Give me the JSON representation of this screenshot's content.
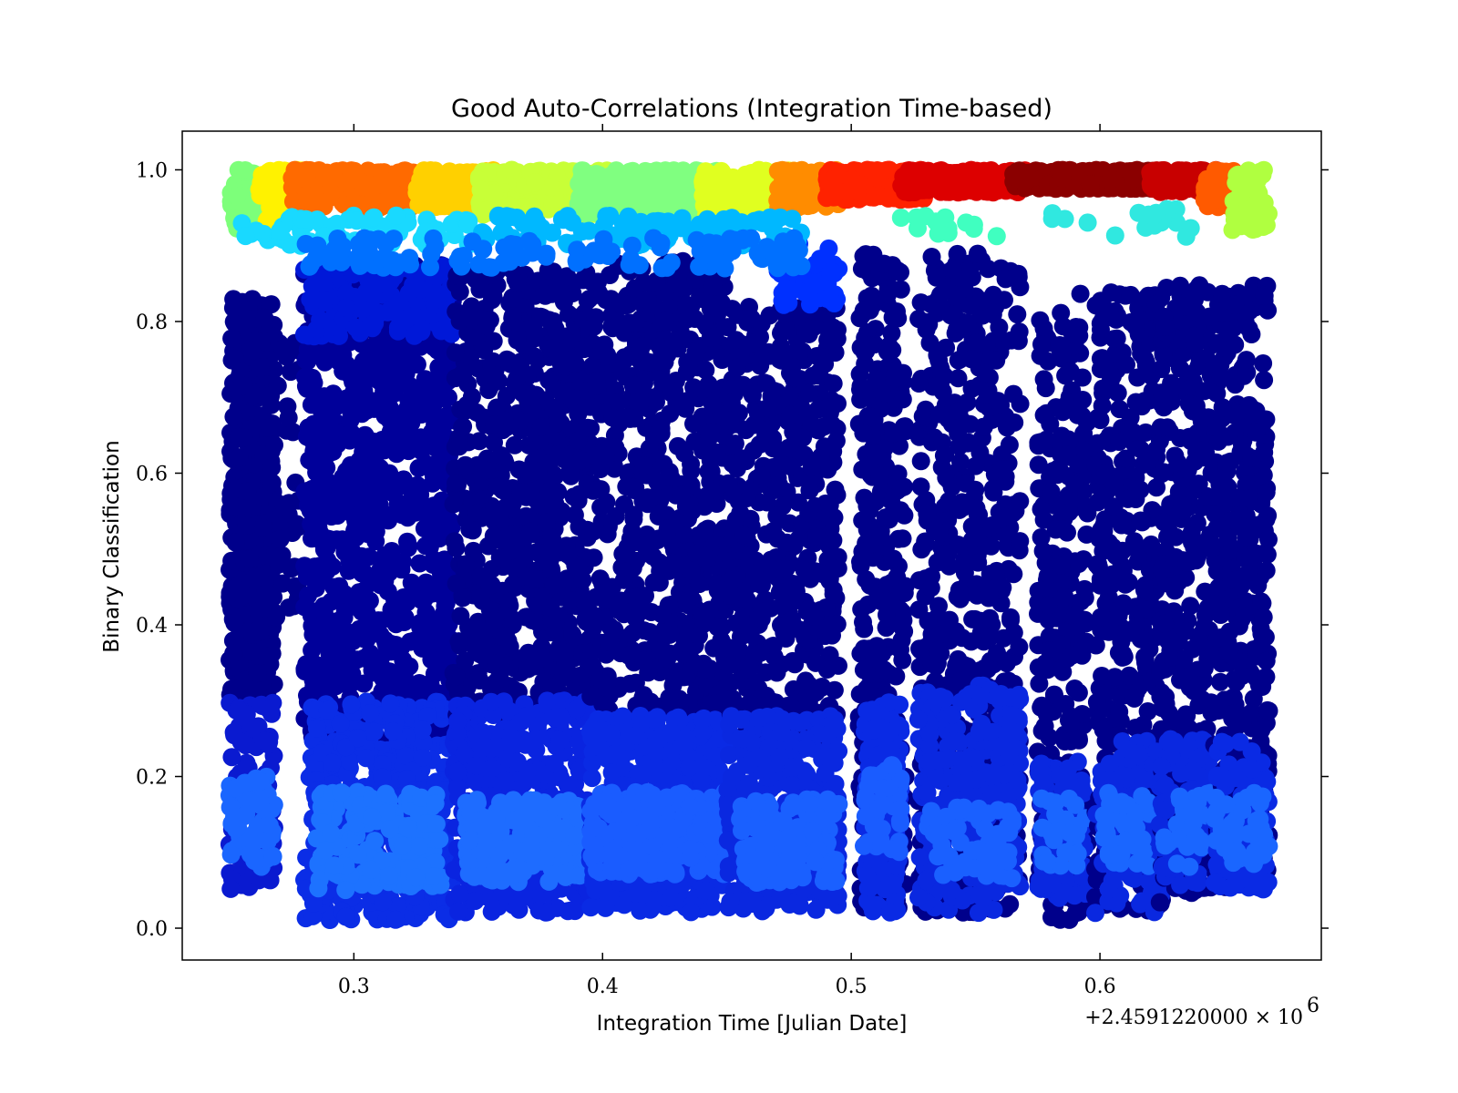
{
  "chart_data": {
    "type": "scatter",
    "title": "Good Auto-Correlations (Integration Time-based)",
    "xlabel": "Integration Time [Julian Date]",
    "ylabel": "Binary Classification",
    "x_offset_label": "+2.4591220000 × 10",
    "x_offset_exponent": "6",
    "xlim": [
      0.231,
      0.689
    ],
    "ylim": [
      -0.042,
      1.051
    ],
    "x_ticks": [
      {
        "value": 0.3,
        "label": "0.3"
      },
      {
        "value": 0.4,
        "label": "0.4"
      },
      {
        "value": 0.5,
        "label": "0.5"
      },
      {
        "value": 0.6,
        "label": "0.6"
      }
    ],
    "y_ticks": [
      {
        "value": 0.0,
        "label": "0.0"
      },
      {
        "value": 0.2,
        "label": "0.2"
      },
      {
        "value": 0.4,
        "label": "0.4"
      },
      {
        "value": 0.6,
        "label": "0.6"
      },
      {
        "value": 0.8,
        "label": "0.8"
      },
      {
        "value": 1.0,
        "label": "1.0"
      }
    ],
    "colormap": "jet",
    "grid": false,
    "legend": "none",
    "point_groups": [
      {
        "x": [
          0.25,
          0.268
        ],
        "y": [
          0.3,
          0.83
        ],
        "color": "#00008b",
        "count": 420
      },
      {
        "x": [
          0.25,
          0.268
        ],
        "y": [
          0.05,
          0.3
        ],
        "color": "#0a1ad0",
        "count": 120
      },
      {
        "x": [
          0.25,
          0.268
        ],
        "y": [
          0.08,
          0.2
        ],
        "color": "#1a66ff",
        "count": 60
      },
      {
        "x": [
          0.268,
          0.278
        ],
        "y": [
          0.4,
          0.78
        ],
        "color": "#00008b",
        "count": 40
      },
      {
        "x": [
          0.28,
          0.34
        ],
        "y": [
          0.25,
          0.88
        ],
        "color": "#00009a",
        "count": 900
      },
      {
        "x": [
          0.28,
          0.34
        ],
        "y": [
          0.01,
          0.3
        ],
        "color": "#0b2de6",
        "count": 450
      },
      {
        "x": [
          0.285,
          0.335
        ],
        "y": [
          0.05,
          0.18
        ],
        "color": "#1d72ff",
        "count": 160
      },
      {
        "x": [
          0.28,
          0.34
        ],
        "y": [
          0.78,
          0.88
        ],
        "color": "#0018d8",
        "count": 150
      },
      {
        "x": [
          0.34,
          0.395
        ],
        "y": [
          0.28,
          0.87
        ],
        "color": "#00008b",
        "count": 700
      },
      {
        "x": [
          0.34,
          0.395
        ],
        "y": [
          0.02,
          0.3
        ],
        "color": "#0a24e0",
        "count": 420
      },
      {
        "x": [
          0.345,
          0.395
        ],
        "y": [
          0.06,
          0.17
        ],
        "color": "#1e6cff",
        "count": 200
      },
      {
        "x": [
          0.395,
          0.45
        ],
        "y": [
          0.28,
          0.88
        ],
        "color": "#00008b",
        "count": 650
      },
      {
        "x": [
          0.395,
          0.45
        ],
        "y": [
          0.02,
          0.28
        ],
        "color": "#0a2ae4",
        "count": 420
      },
      {
        "x": [
          0.395,
          0.45
        ],
        "y": [
          0.07,
          0.18
        ],
        "color": "#1a5cff",
        "count": 260
      },
      {
        "x": [
          0.45,
          0.495
        ],
        "y": [
          0.25,
          0.82
        ],
        "color": "#00008b",
        "count": 500
      },
      {
        "x": [
          0.45,
          0.495
        ],
        "y": [
          0.02,
          0.28
        ],
        "color": "#0a28e0",
        "count": 320
      },
      {
        "x": [
          0.455,
          0.495
        ],
        "y": [
          0.06,
          0.17
        ],
        "color": "#1a60ff",
        "count": 150
      },
      {
        "x": [
          0.47,
          0.495
        ],
        "y": [
          0.82,
          0.91
        ],
        "color": "#0030ff",
        "count": 50
      },
      {
        "x": [
          0.503,
          0.522
        ],
        "y": [
          0.02,
          0.89
        ],
        "color": "#00008b",
        "count": 320
      },
      {
        "x": [
          0.505,
          0.52
        ],
        "y": [
          0.02,
          0.3
        ],
        "color": "#0a2ae4",
        "count": 150
      },
      {
        "x": [
          0.505,
          0.52
        ],
        "y": [
          0.1,
          0.22
        ],
        "color": "#1a5cff",
        "count": 50
      },
      {
        "x": [
          0.527,
          0.568
        ],
        "y": [
          0.02,
          0.89
        ],
        "color": "#00008b",
        "count": 500
      },
      {
        "x": [
          0.527,
          0.568
        ],
        "y": [
          0.02,
          0.32
        ],
        "color": "#0a28e0",
        "count": 260
      },
      {
        "x": [
          0.53,
          0.565
        ],
        "y": [
          0.06,
          0.16
        ],
        "color": "#1a60ff",
        "count": 70
      },
      {
        "x": [
          0.575,
          0.595
        ],
        "y": [
          0.01,
          0.84
        ],
        "color": "#00008b",
        "count": 260
      },
      {
        "x": [
          0.575,
          0.595
        ],
        "y": [
          0.04,
          0.22
        ],
        "color": "#0a28e0",
        "count": 90
      },
      {
        "x": [
          0.575,
          0.595
        ],
        "y": [
          0.08,
          0.18
        ],
        "color": "#1a66ff",
        "count": 30
      },
      {
        "x": [
          0.598,
          0.625
        ],
        "y": [
          0.02,
          0.84
        ],
        "color": "#00008b",
        "count": 360
      },
      {
        "x": [
          0.598,
          0.625
        ],
        "y": [
          0.02,
          0.25
        ],
        "color": "#0a28e0",
        "count": 120
      },
      {
        "x": [
          0.6,
          0.62
        ],
        "y": [
          0.08,
          0.18
        ],
        "color": "#1a66ff",
        "count": 40
      },
      {
        "x": [
          0.624,
          0.645
        ],
        "y": [
          0.03,
          0.85
        ],
        "color": "#00008b",
        "count": 320
      },
      {
        "x": [
          0.624,
          0.645
        ],
        "y": [
          0.05,
          0.25
        ],
        "color": "#0a28e0",
        "count": 100
      },
      {
        "x": [
          0.625,
          0.645
        ],
        "y": [
          0.08,
          0.18
        ],
        "color": "#1a66ff",
        "count": 30
      },
      {
        "x": [
          0.646,
          0.668
        ],
        "y": [
          0.05,
          0.85
        ],
        "color": "#00008b",
        "count": 360
      },
      {
        "x": [
          0.646,
          0.668
        ],
        "y": [
          0.05,
          0.25
        ],
        "color": "#0a2ae4",
        "count": 110
      },
      {
        "x": [
          0.646,
          0.668
        ],
        "y": [
          0.08,
          0.18
        ],
        "color": "#1a66ff",
        "count": 40
      },
      {
        "x": [
          0.25,
          0.262
        ],
        "y": [
          0.92,
          1.0
        ],
        "color": "#7dff7a",
        "count": 60
      },
      {
        "x": [
          0.262,
          0.28
        ],
        "y": [
          0.93,
          1.0
        ],
        "color": "#fff200",
        "count": 90
      },
      {
        "x": [
          0.275,
          0.325
        ],
        "y": [
          0.95,
          1.0
        ],
        "color": "#ff6a00",
        "count": 260
      },
      {
        "x": [
          0.325,
          0.365
        ],
        "y": [
          0.95,
          1.0
        ],
        "color": "#ffd000",
        "count": 200
      },
      {
        "x": [
          0.35,
          0.405
        ],
        "y": [
          0.94,
          1.0
        ],
        "color": "#c8ff37",
        "count": 260
      },
      {
        "x": [
          0.39,
          0.45
        ],
        "y": [
          0.94,
          1.0
        ],
        "color": "#80ff80",
        "count": 280
      },
      {
        "x": [
          0.44,
          0.478
        ],
        "y": [
          0.94,
          1.0
        ],
        "color": "#e0ff20",
        "count": 200
      },
      {
        "x": [
          0.47,
          0.495
        ],
        "y": [
          0.95,
          1.0
        ],
        "color": "#ff8c00",
        "count": 110
      },
      {
        "x": [
          0.49,
          0.53
        ],
        "y": [
          0.96,
          1.0
        ],
        "color": "#ff2200",
        "count": 200
      },
      {
        "x": [
          0.52,
          0.57
        ],
        "y": [
          0.97,
          1.0
        ],
        "color": "#dd0000",
        "count": 230
      },
      {
        "x": [
          0.565,
          0.625
        ],
        "y": [
          0.975,
          1.0
        ],
        "color": "#8b0000",
        "count": 260
      },
      {
        "x": [
          0.62,
          0.648
        ],
        "y": [
          0.97,
          1.0
        ],
        "color": "#c80000",
        "count": 140
      },
      {
        "x": [
          0.642,
          0.655
        ],
        "y": [
          0.95,
          1.0
        ],
        "color": "#ff5a00",
        "count": 60
      },
      {
        "x": [
          0.652,
          0.668
        ],
        "y": [
          0.92,
          1.0
        ],
        "color": "#b0ff40",
        "count": 70
      },
      {
        "x": [
          0.255,
          0.35
        ],
        "y": [
          0.9,
          0.94
        ],
        "color": "#19d9ff",
        "count": 70
      },
      {
        "x": [
          0.35,
          0.48
        ],
        "y": [
          0.9,
          0.94
        ],
        "color": "#00b8ff",
        "count": 110
      },
      {
        "x": [
          0.28,
          0.48
        ],
        "y": [
          0.87,
          0.91
        ],
        "color": "#0070ff",
        "count": 120
      },
      {
        "x": [
          0.52,
          0.56
        ],
        "y": [
          0.91,
          0.94
        ],
        "color": "#40ffc0",
        "count": 14
      },
      {
        "x": [
          0.58,
          0.64
        ],
        "y": [
          0.91,
          0.95
        ],
        "color": "#30e8e0",
        "count": 18
      }
    ]
  }
}
